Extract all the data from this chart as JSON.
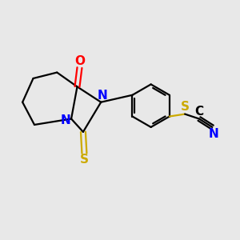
{
  "bg_color": "#e8e8e8",
  "bond_color": "#000000",
  "N_color": "#0000ff",
  "O_color": "#ff0000",
  "S_color": "#ccaa00",
  "C_color": "#000000",
  "line_width": 1.6,
  "fig_size": [
    3.0,
    3.0
  ],
  "dpi": 100,
  "xlim": [
    0,
    10
  ],
  "ylim": [
    0,
    10
  ],
  "label_fontsize": 11
}
